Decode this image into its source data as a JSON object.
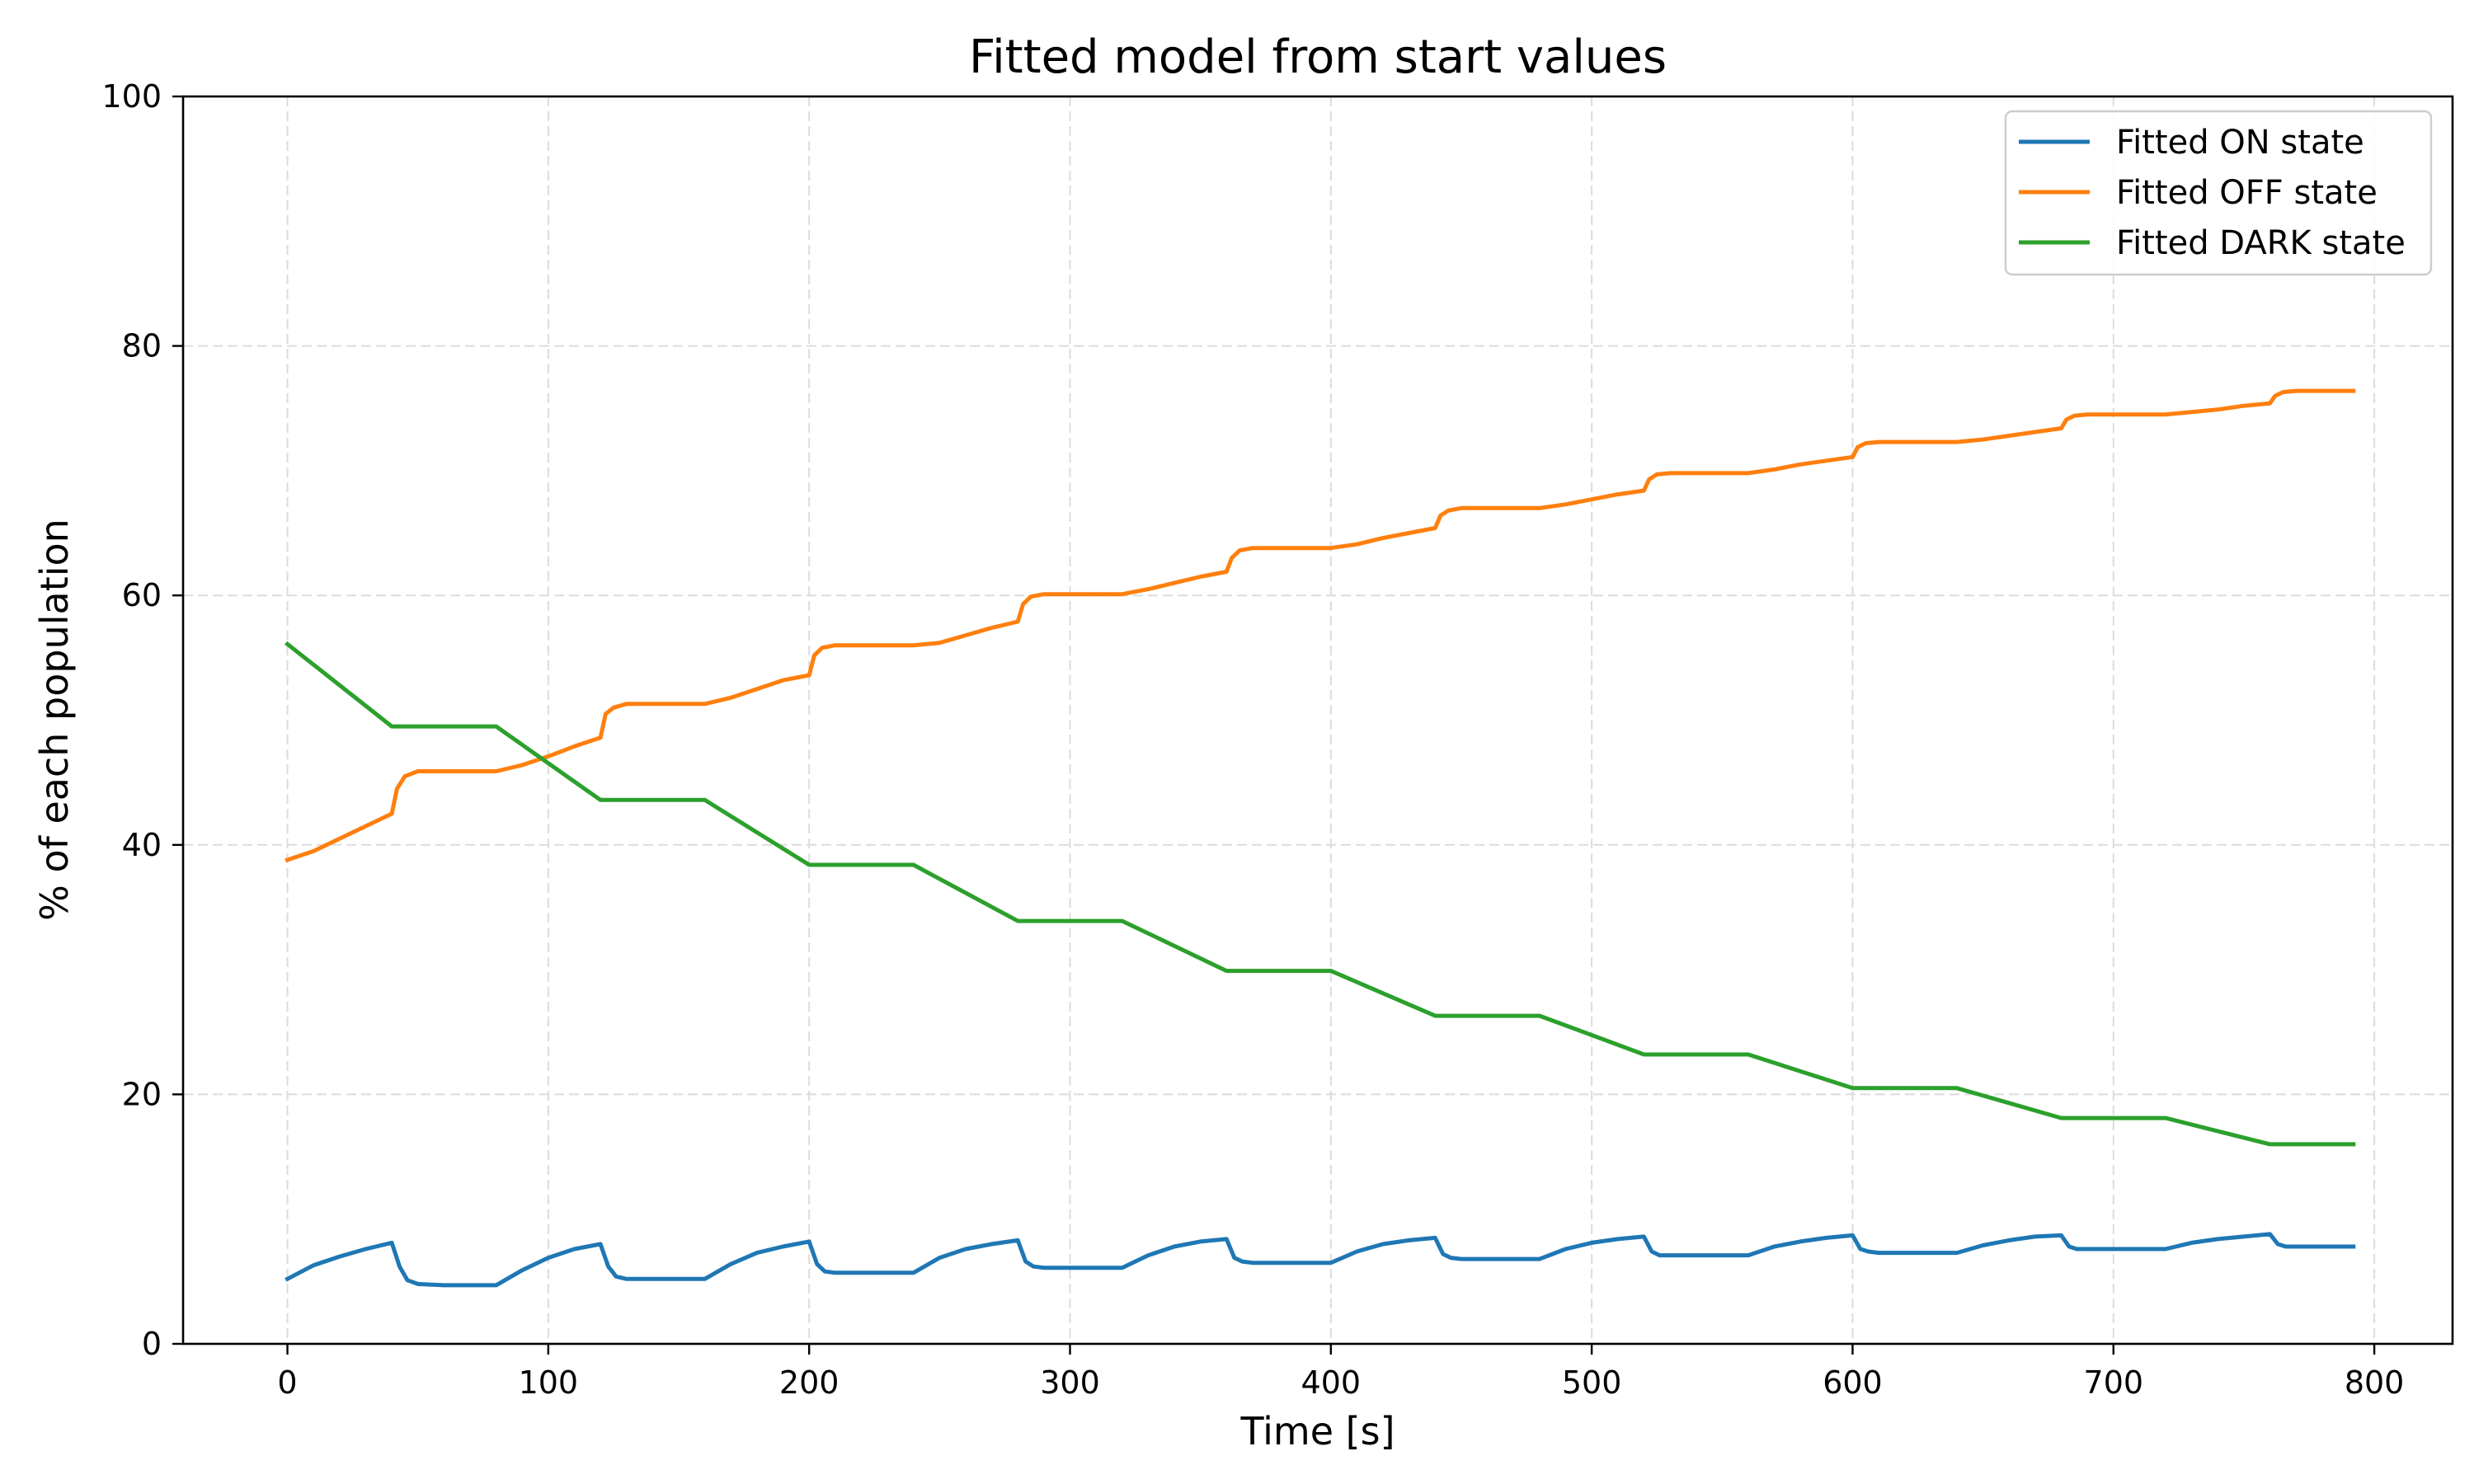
{
  "chart_data": {
    "type": "line",
    "title": "Fitted model from start values",
    "xlabel": "Time [s]",
    "ylabel": "% of each population",
    "xlim": [
      -40,
      830
    ],
    "ylim": [
      0,
      100
    ],
    "xticks": [
      0,
      100,
      200,
      300,
      400,
      500,
      600,
      700,
      800
    ],
    "yticks": [
      0,
      20,
      40,
      60,
      80,
      100
    ],
    "grid": true,
    "legend_position": "top-right",
    "series": [
      {
        "name": "Fitted ON state",
        "color": "#1f77b4",
        "points": [
          [
            0,
            5.2
          ],
          [
            10,
            6.3
          ],
          [
            20,
            7.0
          ],
          [
            30,
            7.6
          ],
          [
            40,
            8.1
          ],
          [
            43,
            6.2
          ],
          [
            46,
            5.1
          ],
          [
            50,
            4.8
          ],
          [
            60,
            4.7
          ],
          [
            80,
            4.7
          ],
          [
            90,
            5.9
          ],
          [
            100,
            6.9
          ],
          [
            110,
            7.6
          ],
          [
            120,
            8.0
          ],
          [
            123,
            6.2
          ],
          [
            126,
            5.4
          ],
          [
            130,
            5.2
          ],
          [
            160,
            5.2
          ],
          [
            170,
            6.4
          ],
          [
            180,
            7.3
          ],
          [
            190,
            7.8
          ],
          [
            200,
            8.2
          ],
          [
            203,
            6.4
          ],
          [
            206,
            5.8
          ],
          [
            210,
            5.7
          ],
          [
            240,
            5.7
          ],
          [
            250,
            6.9
          ],
          [
            260,
            7.6
          ],
          [
            270,
            8.0
          ],
          [
            280,
            8.3
          ],
          [
            283,
            6.6
          ],
          [
            286,
            6.2
          ],
          [
            290,
            6.1
          ],
          [
            320,
            6.1
          ],
          [
            330,
            7.1
          ],
          [
            340,
            7.8
          ],
          [
            350,
            8.2
          ],
          [
            360,
            8.4
          ],
          [
            363,
            6.9
          ],
          [
            366,
            6.6
          ],
          [
            370,
            6.5
          ],
          [
            400,
            6.5
          ],
          [
            410,
            7.4
          ],
          [
            420,
            8.0
          ],
          [
            430,
            8.3
          ],
          [
            440,
            8.5
          ],
          [
            443,
            7.2
          ],
          [
            446,
            6.9
          ],
          [
            450,
            6.8
          ],
          [
            480,
            6.8
          ],
          [
            490,
            7.6
          ],
          [
            500,
            8.1
          ],
          [
            510,
            8.4
          ],
          [
            520,
            8.6
          ],
          [
            523,
            7.4
          ],
          [
            526,
            7.1
          ],
          [
            530,
            7.1
          ],
          [
            560,
            7.1
          ],
          [
            570,
            7.8
          ],
          [
            580,
            8.2
          ],
          [
            590,
            8.5
          ],
          [
            600,
            8.7
          ],
          [
            603,
            7.6
          ],
          [
            606,
            7.4
          ],
          [
            610,
            7.3
          ],
          [
            640,
            7.3
          ],
          [
            650,
            7.9
          ],
          [
            660,
            8.3
          ],
          [
            670,
            8.6
          ],
          [
            680,
            8.7
          ],
          [
            683,
            7.8
          ],
          [
            686,
            7.6
          ],
          [
            690,
            7.6
          ],
          [
            720,
            7.6
          ],
          [
            730,
            8.1
          ],
          [
            740,
            8.4
          ],
          [
            750,
            8.6
          ],
          [
            760,
            8.8
          ],
          [
            763,
            8.0
          ],
          [
            766,
            7.8
          ],
          [
            770,
            7.8
          ],
          [
            792,
            7.8
          ]
        ]
      },
      {
        "name": "Fitted OFF state",
        "color": "#ff7f0e",
        "points": [
          [
            0,
            38.8
          ],
          [
            10,
            39.5
          ],
          [
            20,
            40.5
          ],
          [
            30,
            41.5
          ],
          [
            40,
            42.5
          ],
          [
            42,
            44.5
          ],
          [
            45,
            45.5
          ],
          [
            50,
            45.9
          ],
          [
            80,
            45.9
          ],
          [
            90,
            46.4
          ],
          [
            100,
            47.1
          ],
          [
            110,
            47.9
          ],
          [
            120,
            48.6
          ],
          [
            122,
            50.5
          ],
          [
            125,
            51.0
          ],
          [
            130,
            51.3
          ],
          [
            160,
            51.3
          ],
          [
            170,
            51.8
          ],
          [
            180,
            52.5
          ],
          [
            190,
            53.2
          ],
          [
            200,
            53.6
          ],
          [
            202,
            55.2
          ],
          [
            205,
            55.8
          ],
          [
            210,
            56.0
          ],
          [
            240,
            56.0
          ],
          [
            250,
            56.2
          ],
          [
            260,
            56.8
          ],
          [
            270,
            57.4
          ],
          [
            280,
            57.9
          ],
          [
            282,
            59.3
          ],
          [
            285,
            59.9
          ],
          [
            290,
            60.1
          ],
          [
            320,
            60.1
          ],
          [
            330,
            60.5
          ],
          [
            340,
            61.0
          ],
          [
            350,
            61.5
          ],
          [
            360,
            61.9
          ],
          [
            362,
            63.0
          ],
          [
            365,
            63.6
          ],
          [
            370,
            63.8
          ],
          [
            400,
            63.8
          ],
          [
            410,
            64.1
          ],
          [
            420,
            64.6
          ],
          [
            430,
            65.0
          ],
          [
            440,
            65.4
          ],
          [
            442,
            66.4
          ],
          [
            445,
            66.8
          ],
          [
            450,
            67.0
          ],
          [
            480,
            67.0
          ],
          [
            490,
            67.3
          ],
          [
            500,
            67.7
          ],
          [
            510,
            68.1
          ],
          [
            520,
            68.4
          ],
          [
            522,
            69.3
          ],
          [
            525,
            69.7
          ],
          [
            530,
            69.8
          ],
          [
            560,
            69.8
          ],
          [
            570,
            70.1
          ],
          [
            580,
            70.5
          ],
          [
            590,
            70.8
          ],
          [
            600,
            71.1
          ],
          [
            602,
            71.9
          ],
          [
            605,
            72.2
          ],
          [
            610,
            72.3
          ],
          [
            640,
            72.3
          ],
          [
            650,
            72.5
          ],
          [
            660,
            72.8
          ],
          [
            670,
            73.1
          ],
          [
            680,
            73.4
          ],
          [
            682,
            74.1
          ],
          [
            685,
            74.4
          ],
          [
            690,
            74.5
          ],
          [
            720,
            74.5
          ],
          [
            730,
            74.7
          ],
          [
            740,
            74.9
          ],
          [
            750,
            75.2
          ],
          [
            760,
            75.4
          ],
          [
            762,
            76.0
          ],
          [
            765,
            76.3
          ],
          [
            770,
            76.4
          ],
          [
            792,
            76.4
          ]
        ]
      },
      {
        "name": "Fitted DARK state",
        "color": "#2ca02c",
        "points": [
          [
            0,
            56.1
          ],
          [
            40,
            49.5
          ],
          [
            80,
            49.5
          ],
          [
            120,
            43.6
          ],
          [
            160,
            43.6
          ],
          [
            200,
            38.4
          ],
          [
            240,
            38.4
          ],
          [
            280,
            33.9
          ],
          [
            320,
            33.9
          ],
          [
            360,
            29.9
          ],
          [
            400,
            29.9
          ],
          [
            440,
            26.3
          ],
          [
            480,
            26.3
          ],
          [
            520,
            23.2
          ],
          [
            560,
            23.2
          ],
          [
            600,
            20.5
          ],
          [
            640,
            20.5
          ],
          [
            680,
            18.1
          ],
          [
            720,
            18.1
          ],
          [
            760,
            16.0
          ],
          [
            792,
            16.0
          ]
        ]
      }
    ]
  }
}
